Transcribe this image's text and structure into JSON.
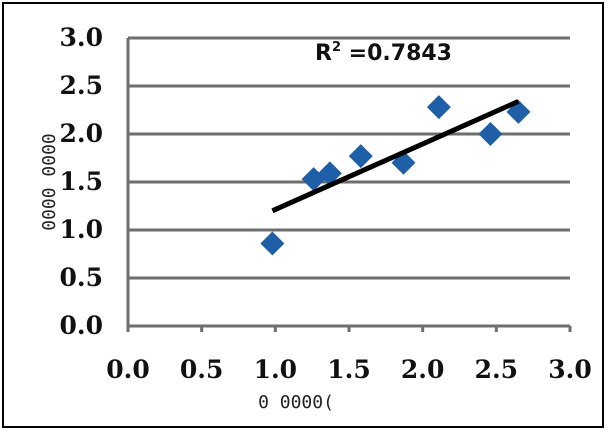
{
  "chart_data": {
    "type": "scatter",
    "title": "",
    "xlabel": "0 0000(",
    "ylabel": "0000 0000",
    "xlim": [
      0,
      3
    ],
    "ylim": [
      0,
      3
    ],
    "x_ticks": [
      "0.0",
      "0.5",
      "1.0",
      "1.5",
      "2.0",
      "2.5",
      "3.0"
    ],
    "y_ticks": [
      "0.0",
      "0.5",
      "1.0",
      "1.5",
      "2.0",
      "2.5",
      "3.0"
    ],
    "grid": "horizontal",
    "legend": "none",
    "series": [
      {
        "x": [
          0.98,
          1.26,
          1.37,
          1.58,
          1.87,
          2.11,
          2.46,
          2.65
        ],
        "y": [
          0.86,
          1.53,
          1.59,
          1.77,
          1.7,
          2.28,
          2.0,
          2.23
        ]
      }
    ],
    "trendline": {
      "x": [
        0.98,
        2.65
      ],
      "y": [
        1.2,
        2.34
      ]
    },
    "annotation": {
      "prefix": "R",
      "sup": "2",
      "suffix": " =0.7843"
    },
    "colors": {
      "marker": "#1f5fa8",
      "trendline": "#000000",
      "grid": "#6e6e6e"
    }
  }
}
